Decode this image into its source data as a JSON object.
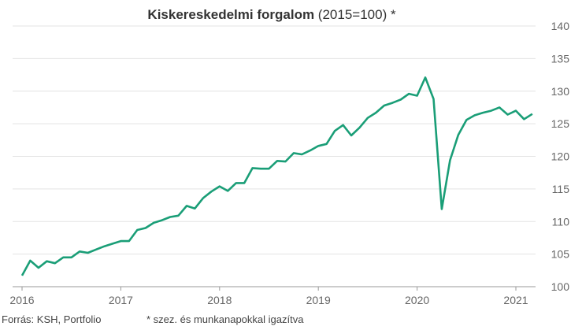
{
  "chart_data": {
    "type": "line",
    "title_main": "Kiskereskedelmi forgalom",
    "title_suffix": " (2015=100) *",
    "xlabel": "",
    "ylabel": "",
    "x_ticks": [
      "2016",
      "2017",
      "2018",
      "2019",
      "2020",
      "2021"
    ],
    "y_ticks": [
      100,
      105,
      110,
      115,
      120,
      125,
      130,
      135,
      140
    ],
    "ylim": [
      100,
      140
    ],
    "xlim": [
      2016.0,
      2021.25
    ],
    "grid": true,
    "line_color": "#1a9e77",
    "x": [
      2016.0,
      2016.0833,
      2016.1667,
      2016.25,
      2016.3333,
      2016.4167,
      2016.5,
      2016.5833,
      2016.6667,
      2016.75,
      2016.8333,
      2016.9167,
      2017.0,
      2017.0833,
      2017.1667,
      2017.25,
      2017.3333,
      2017.4167,
      2017.5,
      2017.5833,
      2017.6667,
      2017.75,
      2017.8333,
      2017.9167,
      2018.0,
      2018.0833,
      2018.1667,
      2018.25,
      2018.3333,
      2018.4167,
      2018.5,
      2018.5833,
      2018.6667,
      2018.75,
      2018.8333,
      2018.9167,
      2019.0,
      2019.0833,
      2019.1667,
      2019.25,
      2019.3333,
      2019.4167,
      2019.5,
      2019.5833,
      2019.6667,
      2019.75,
      2019.8333,
      2019.9167,
      2020.0,
      2020.0833,
      2020.1667,
      2020.25,
      2020.3333,
      2020.4167,
      2020.5,
      2020.5833,
      2020.6667,
      2020.75,
      2020.8333,
      2020.9167,
      2021.0,
      2021.0833,
      2021.1667
    ],
    "values": [
      101.7,
      104.0,
      102.9,
      103.9,
      103.6,
      104.5,
      104.5,
      105.4,
      105.2,
      105.7,
      106.2,
      106.6,
      107.0,
      107.0,
      108.7,
      109.0,
      109.8,
      110.2,
      110.7,
      110.9,
      112.4,
      112.0,
      113.6,
      114.6,
      115.4,
      114.7,
      115.9,
      115.9,
      118.2,
      118.1,
      118.1,
      119.3,
      119.2,
      120.5,
      120.3,
      120.9,
      121.6,
      121.9,
      123.9,
      124.8,
      123.2,
      124.4,
      125.9,
      126.7,
      127.8,
      128.2,
      128.7,
      129.6,
      129.3,
      132.1,
      128.8,
      111.9,
      119.4,
      123.3,
      125.6,
      126.3,
      126.7,
      127.0,
      127.5,
      126.4,
      127.0,
      125.7,
      126.5
    ]
  },
  "footer": {
    "source": "Forrás: KSH, Portfolio",
    "note": "* szez. és munkanapokkal igazítva"
  }
}
